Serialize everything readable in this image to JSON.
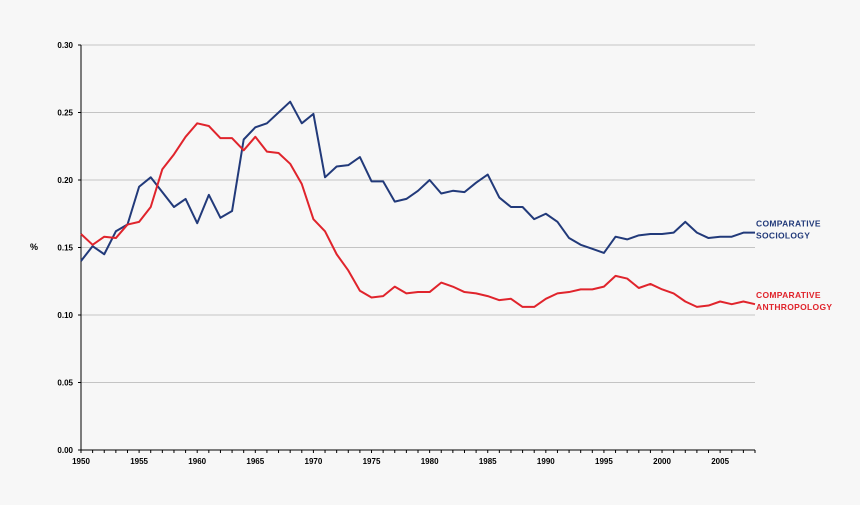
{
  "chart_data": {
    "type": "line",
    "title": "",
    "xlabel": "",
    "ylabel": "%",
    "xlim": [
      1950,
      2008
    ],
    "ylim": [
      0,
      0.3
    ],
    "xticks": [
      "1950",
      "1955",
      "1960",
      "1965",
      "1970",
      "1975",
      "1980",
      "1985",
      "1990",
      "1995",
      "2000",
      "2005"
    ],
    "yticks": [
      "0.00",
      "0.05",
      "0.10",
      "0.15",
      "0.20",
      "0.25",
      "0.30"
    ],
    "grid": "horizontal",
    "x": [
      1950,
      1951,
      1952,
      1953,
      1954,
      1955,
      1956,
      1957,
      1958,
      1959,
      1960,
      1961,
      1962,
      1963,
      1964,
      1965,
      1966,
      1967,
      1968,
      1969,
      1970,
      1971,
      1972,
      1973,
      1974,
      1975,
      1976,
      1977,
      1978,
      1979,
      1980,
      1981,
      1982,
      1983,
      1984,
      1985,
      1986,
      1987,
      1988,
      1989,
      1990,
      1991,
      1992,
      1993,
      1994,
      1995,
      1996,
      1997,
      1998,
      1999,
      2000,
      2001,
      2002,
      2003,
      2004,
      2005,
      2006,
      2007,
      2008
    ],
    "series": [
      {
        "name": "COMPARATIVE SOCIOLOGY",
        "name_lines": [
          "COMPARATIVE",
          "SOCIOLOGY"
        ],
        "color": "#223a7a",
        "values": [
          0.14,
          0.151,
          0.145,
          0.162,
          0.167,
          0.195,
          0.202,
          0.191,
          0.18,
          0.186,
          0.168,
          0.189,
          0.172,
          0.177,
          0.23,
          0.239,
          0.242,
          0.25,
          0.258,
          0.242,
          0.249,
          0.202,
          0.21,
          0.211,
          0.217,
          0.199,
          0.199,
          0.184,
          0.186,
          0.192,
          0.2,
          0.19,
          0.192,
          0.191,
          0.198,
          0.204,
          0.187,
          0.18,
          0.18,
          0.171,
          0.175,
          0.169,
          0.157,
          0.152,
          0.149,
          0.146,
          0.158,
          0.156,
          0.159,
          0.16,
          0.16,
          0.161,
          0.169,
          0.161,
          0.157,
          0.158,
          0.158,
          0.161,
          0.161
        ]
      },
      {
        "name": "COMPARATIVE ANTHROPOLOGY",
        "name_lines": [
          "COMPARATIVE",
          "ANTHROPOLOGY"
        ],
        "color": "#e0242c",
        "values": [
          0.16,
          0.152,
          0.158,
          0.157,
          0.167,
          0.169,
          0.18,
          0.208,
          0.219,
          0.232,
          0.242,
          0.24,
          0.231,
          0.231,
          0.222,
          0.232,
          0.221,
          0.22,
          0.212,
          0.197,
          0.171,
          0.162,
          0.145,
          0.133,
          0.118,
          0.113,
          0.114,
          0.121,
          0.116,
          0.117,
          0.117,
          0.124,
          0.121,
          0.117,
          0.116,
          0.114,
          0.111,
          0.112,
          0.106,
          0.106,
          0.112,
          0.116,
          0.117,
          0.119,
          0.119,
          0.121,
          0.129,
          0.127,
          0.12,
          0.123,
          0.119,
          0.116,
          0.11,
          0.106,
          0.107,
          0.11,
          0.108,
          0.11,
          0.108
        ]
      }
    ]
  }
}
